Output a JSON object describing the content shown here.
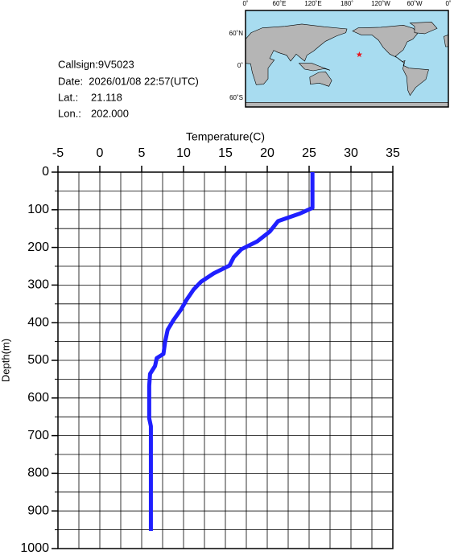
{
  "info": {
    "callsign": "Callsign:9V5023",
    "date": "Date:  2026/01/08 22:57(UTC)",
    "lat_label": "Lat.:",
    "lat": 21.118,
    "lon_label": "Lon.:",
    "lon": 202.0,
    "lat_text": "21.118",
    "lon_text": "202.000"
  },
  "map": {
    "lon_labels": [
      "0˚",
      "60˚E",
      "120˚E",
      "180˚",
      "120˚W",
      "60˚W",
      "0˚"
    ],
    "lat_labels": [
      "60˚N",
      "0˚",
      "60˚S"
    ]
  },
  "chart_data": {
    "type": "line",
    "x_label": "Temperature(C)",
    "y_label": "Depth(m)",
    "xlim": [
      -5,
      35
    ],
    "ylim": [
      0,
      1000
    ],
    "y_inverted": true,
    "grid": true,
    "xticks": [
      -5,
      0,
      5,
      10,
      15,
      20,
      25,
      30,
      35
    ],
    "yticks": [
      0,
      100,
      200,
      300,
      400,
      500,
      600,
      700,
      800,
      900,
      1000
    ],
    "xminor": [
      -2.5,
      2.5,
      7.5,
      12.5,
      17.5,
      22.5,
      27.5,
      32.5
    ],
    "yminor": [
      50,
      150,
      250,
      350,
      450,
      550,
      650,
      750,
      850,
      950
    ],
    "y": [
      0,
      95,
      110,
      130,
      158,
      184,
      205,
      226,
      248,
      269,
      291,
      312,
      338,
      365,
      393,
      419,
      451,
      483,
      494,
      515,
      536,
      568,
      654,
      675,
      953
    ],
    "series": [
      {
        "color": "#1f1fff",
        "values": [
          25.4,
          25.4,
          23.9,
          21.3,
          20.3,
          18.8,
          16.9,
          16.0,
          15.5,
          13.6,
          12.1,
          11.2,
          10.4,
          9.7,
          8.8,
          8.1,
          7.8,
          7.6,
          6.8,
          6.6,
          6.0,
          5.9,
          5.9,
          6.1,
          6.1
        ]
      }
    ]
  }
}
